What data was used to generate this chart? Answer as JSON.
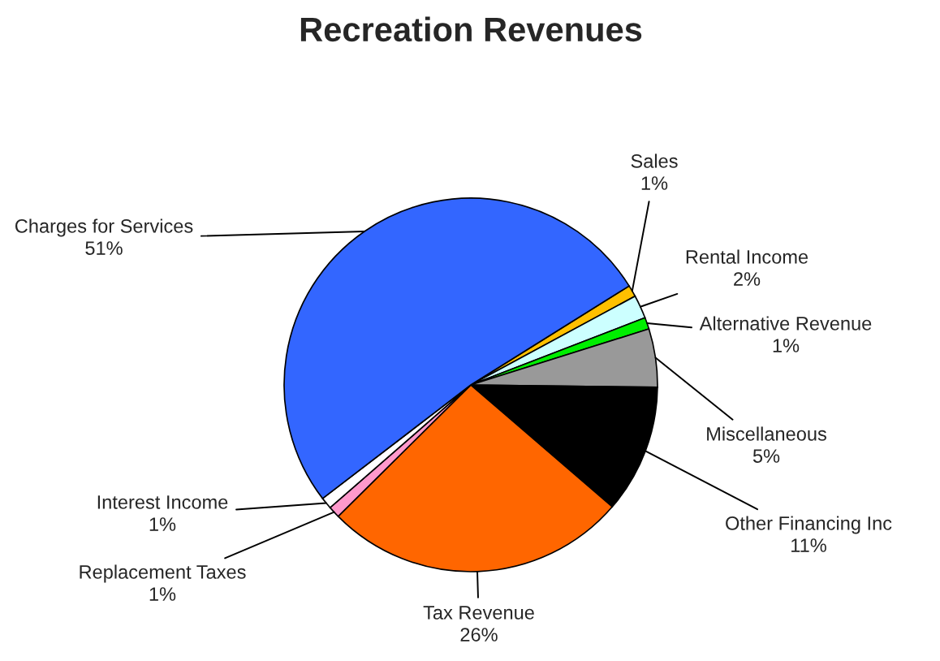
{
  "chart_data": {
    "type": "pie",
    "title": "Recreation Revenues",
    "categories": [
      "Sales",
      "Rental Income",
      "Alternative Revenue",
      "Miscellaneous",
      "Other Financing Inc",
      "Tax Revenue",
      "Replacement Taxes",
      "Interest Income",
      "Charges for Services"
    ],
    "values": [
      1,
      2,
      1,
      5,
      11,
      26,
      1,
      1,
      51
    ],
    "value_labels": [
      "1%",
      "2%",
      "1%",
      "5%",
      "11%",
      "26%",
      "1%",
      "1%",
      "51%"
    ],
    "colors": [
      "#ffc000",
      "#ccffff",
      "#00ee00",
      "#999999",
      "#000000",
      "#ff6600",
      "#ff99cc",
      "#ffffff",
      "#3366ff"
    ]
  }
}
